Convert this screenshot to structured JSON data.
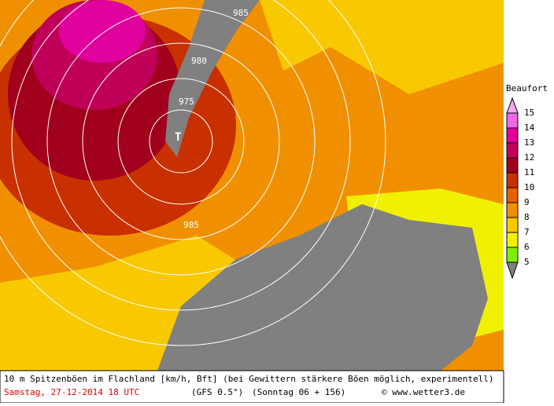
{
  "map": {
    "isobar_labels": [
      "985",
      "980",
      "975",
      "985"
    ],
    "low_marker": "T"
  },
  "legend": {
    "title": "Beaufort",
    "levels": [
      {
        "value": 15,
        "color": "#f4a6f4"
      },
      {
        "value": 14,
        "color": "#f068e8"
      },
      {
        "value": 13,
        "color": "#e0009c"
      },
      {
        "value": 12,
        "color": "#c00058"
      },
      {
        "value": 11,
        "color": "#a0001c"
      },
      {
        "value": 10,
        "color": "#c83000"
      },
      {
        "value": 9,
        "color": "#e86000"
      },
      {
        "value": 8,
        "color": "#f09000"
      },
      {
        "value": 7,
        "color": "#f8c800"
      },
      {
        "value": 6,
        "color": "#f0f000"
      },
      {
        "value": 5,
        "color": "#80f000"
      }
    ]
  },
  "caption": {
    "line1": "10 m Spitzenböen im Flachland [km/h, Bft] (bei Gewittern stärkere Böen möglich, experimentell)",
    "date": "Samstag, 27-12-2014  18 UTC",
    "model": "(GFS 0.5°)",
    "run": "(Sonntag 06 + 156)",
    "credit": "© www.wetter3.de"
  }
}
